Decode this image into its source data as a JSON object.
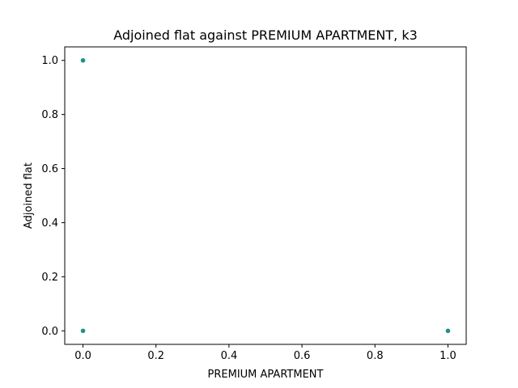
{
  "chart_data": {
    "type": "scatter",
    "title": "Adjoined flat against PREMIUM APARTMENT, k3",
    "xlabel": "PREMIUM APARTMENT",
    "ylabel": "Adjoined flat",
    "xlim": [
      -0.05,
      1.05
    ],
    "ylim": [
      -0.05,
      1.05
    ],
    "xticks": [
      "0.0",
      "0.2",
      "0.4",
      "0.6",
      "0.8",
      "1.0"
    ],
    "yticks": [
      "0.0",
      "0.2",
      "0.4",
      "0.6",
      "0.8",
      "1.0"
    ],
    "grid": false,
    "marker_color": "#21908d",
    "points": [
      {
        "x": 0.0,
        "y": 1.0
      },
      {
        "x": 0.0,
        "y": 0.0
      },
      {
        "x": 1.0,
        "y": 0.0
      }
    ]
  }
}
